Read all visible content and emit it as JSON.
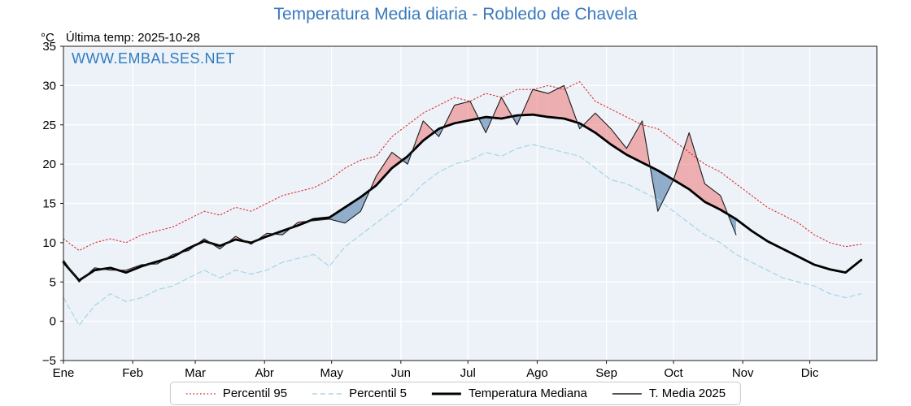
{
  "title": "Temperatura Media diaria - Robledo de Chavela",
  "watermark": "WWW.EMBALSES.NET",
  "header": {
    "y_unit": "°C",
    "last_temp_label": "Última temp: 2025-10-28"
  },
  "colors": {
    "title": "#3a79bd",
    "watermark": "#2e7cc0",
    "panel": "#edf2f8",
    "grid": "#ffffff",
    "spine": "#1a1a1a",
    "fill_above": "rgba(236,90,90,0.45)",
    "fill_below": "rgba(95,135,180,0.65)"
  },
  "chart_data": {
    "type": "line",
    "title": "Temperatura Media diaria - Robledo de Chavela",
    "xlabel": "",
    "ylabel": "°C",
    "xlim": [
      0,
      364
    ],
    "ylim": [
      -5,
      35
    ],
    "yticks": [
      -5,
      0,
      5,
      10,
      15,
      20,
      25,
      30,
      35
    ],
    "grid": true,
    "legend_position": "bottom",
    "months": [
      {
        "label": "Ene",
        "day": 0
      },
      {
        "label": "Feb",
        "day": 31
      },
      {
        "label": "Mar",
        "day": 59
      },
      {
        "label": "Abr",
        "day": 90
      },
      {
        "label": "May",
        "day": 120
      },
      {
        "label": "Jun",
        "day": 151
      },
      {
        "label": "Jul",
        "day": 181
      },
      {
        "label": "Ago",
        "day": 212
      },
      {
        "label": "Sep",
        "day": 243
      },
      {
        "label": "Oct",
        "day": 273
      },
      {
        "label": "Nov",
        "day": 304
      },
      {
        "label": "Dic",
        "day": 334
      }
    ],
    "series": [
      {
        "name": "Percentil 95",
        "style": "dotted",
        "color": "#dd2e2e",
        "width": 1.1,
        "x": [
          0,
          7,
          14,
          21,
          28,
          35,
          42,
          49,
          56,
          63,
          70,
          77,
          84,
          91,
          98,
          105,
          112,
          119,
          126,
          133,
          140,
          147,
          154,
          161,
          168,
          175,
          182,
          189,
          196,
          203,
          210,
          217,
          224,
          231,
          238,
          245,
          252,
          259,
          266,
          273,
          280,
          287,
          294,
          301,
          308,
          315,
          322,
          329,
          336,
          343,
          350,
          357
        ],
        "values": [
          10.5,
          9.0,
          10.0,
          10.5,
          10.0,
          11.0,
          11.5,
          12.0,
          13.0,
          14.0,
          13.5,
          14.5,
          14.0,
          15.0,
          16.0,
          16.5,
          17.0,
          18.0,
          19.5,
          20.5,
          21.0,
          23.5,
          25.0,
          26.5,
          27.5,
          28.5,
          28.0,
          29.0,
          28.5,
          29.5,
          29.5,
          30.0,
          29.5,
          30.5,
          28.0,
          27.0,
          26.0,
          25.0,
          24.5,
          23.0,
          21.5,
          20.0,
          19.0,
          17.5,
          16.0,
          14.5,
          13.5,
          12.5,
          11.0,
          10.0,
          9.5,
          9.8
        ]
      },
      {
        "name": "Percentil 5",
        "style": "dashed",
        "color": "#a8d7e8",
        "width": 1.3,
        "x": [
          0,
          7,
          14,
          21,
          28,
          35,
          42,
          49,
          56,
          63,
          70,
          77,
          84,
          91,
          98,
          105,
          112,
          119,
          126,
          133,
          140,
          147,
          154,
          161,
          168,
          175,
          182,
          189,
          196,
          203,
          210,
          217,
          224,
          231,
          238,
          245,
          252,
          259,
          266,
          273,
          280,
          287,
          294,
          301,
          308,
          315,
          322,
          329,
          336,
          343,
          350,
          357
        ],
        "values": [
          3.0,
          -0.5,
          2.0,
          3.5,
          2.5,
          3.0,
          4.0,
          4.5,
          5.5,
          6.5,
          5.5,
          6.5,
          6.0,
          6.5,
          7.5,
          8.0,
          8.5,
          7.0,
          9.5,
          11.0,
          12.5,
          14.0,
          15.5,
          17.5,
          19.0,
          20.0,
          20.5,
          21.5,
          21.0,
          22.0,
          22.5,
          22.0,
          21.5,
          21.0,
          19.5,
          18.0,
          17.5,
          16.5,
          15.5,
          14.0,
          12.5,
          11.0,
          10.0,
          8.5,
          7.5,
          6.5,
          5.5,
          5.0,
          4.5,
          3.5,
          3.0,
          3.5
        ]
      },
      {
        "name": "Temperatura Mediana",
        "style": "solid-thick",
        "color": "#000000",
        "width": 2.8,
        "x": [
          0,
          7,
          14,
          21,
          28,
          35,
          42,
          49,
          56,
          63,
          70,
          77,
          84,
          91,
          98,
          105,
          112,
          119,
          126,
          133,
          140,
          147,
          154,
          161,
          168,
          175,
          182,
          189,
          196,
          203,
          210,
          217,
          224,
          231,
          238,
          245,
          252,
          259,
          266,
          273,
          280,
          287,
          294,
          301,
          308,
          315,
          322,
          329,
          336,
          343,
          350,
          357
        ],
        "values": [
          7.5,
          5.2,
          6.5,
          6.8,
          6.2,
          7.0,
          7.6,
          8.2,
          9.3,
          10.2,
          9.6,
          10.4,
          10.0,
          10.8,
          11.5,
          12.2,
          13.0,
          13.2,
          14.5,
          15.8,
          17.3,
          19.5,
          21.0,
          23.0,
          24.5,
          25.2,
          25.6,
          26.0,
          25.8,
          26.2,
          26.3,
          26.0,
          25.8,
          25.2,
          24.0,
          22.5,
          21.2,
          20.2,
          19.2,
          18.0,
          16.8,
          15.2,
          14.2,
          13.0,
          11.5,
          10.2,
          9.2,
          8.2,
          7.2,
          6.6,
          6.2,
          7.8
        ]
      },
      {
        "name": "T. Media 2025",
        "style": "solid-thin",
        "color": "#1a1a1a",
        "width": 1.1,
        "x": [
          0,
          7,
          14,
          21,
          28,
          35,
          42,
          49,
          56,
          63,
          70,
          77,
          84,
          91,
          98,
          105,
          112,
          119,
          126,
          133,
          140,
          147,
          154,
          161,
          168,
          175,
          182,
          189,
          196,
          203,
          210,
          217,
          224,
          231,
          238,
          245,
          252,
          259,
          266,
          273,
          280,
          287,
          294,
          301
        ],
        "values": [
          7.8,
          5.0,
          6.8,
          6.5,
          6.5,
          7.2,
          7.3,
          8.5,
          9.0,
          10.5,
          9.2,
          10.8,
          9.8,
          11.2,
          11.0,
          12.6,
          12.8,
          13.0,
          12.5,
          14.0,
          18.5,
          21.5,
          20.0,
          25.5,
          23.5,
          27.5,
          28.0,
          24.0,
          28.5,
          25.0,
          29.5,
          29.0,
          30.0,
          24.5,
          26.5,
          24.5,
          22.0,
          25.5,
          14.0,
          18.0,
          24.0,
          17.5,
          16.0,
          11.0
        ]
      }
    ],
    "fills": {
      "between": [
        "Temperatura Mediana",
        "T. Media 2025"
      ],
      "above_color": "rgba(236,90,90,0.45)",
      "below_color": "rgba(95,135,180,0.65)"
    }
  }
}
